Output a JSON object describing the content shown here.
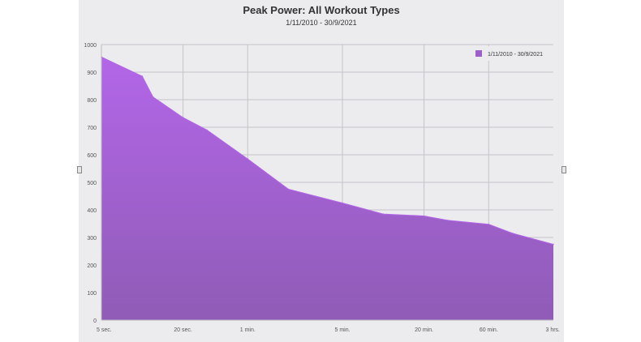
{
  "chart_data": {
    "type": "area",
    "title": "Peak Power: All Workout Types",
    "subtitle": "1/11/2010 - 30/9/2021",
    "legend": {
      "entries": [
        "1/11/2010 - 30/9/2021"
      ],
      "placement": "top-right"
    },
    "xlabel": "",
    "ylabel": "",
    "x_tick_labels": [
      "5 sec.",
      "20 sec.",
      "1 min.",
      "5 min.",
      "20 min.",
      "60 min.",
      "3 hrs."
    ],
    "x_tick_seconds": [
      5,
      20,
      60,
      300,
      1200,
      3600,
      10800
    ],
    "x_scale": "log",
    "y_ticks": [
      0,
      100,
      200,
      300,
      400,
      500,
      600,
      700,
      800,
      900,
      1000
    ],
    "ylim": [
      0,
      1000
    ],
    "grid": true,
    "colors": {
      "area_top": "#b366e8",
      "area_bottom": "#8f5cb6",
      "legend_swatch": "#9c5fc8"
    },
    "series": [
      {
        "name": "1/11/2010 - 30/9/2021",
        "points": [
          {
            "x": 5,
            "y": 955
          },
          {
            "x": 10,
            "y": 885
          },
          {
            "x": 12,
            "y": 810
          },
          {
            "x": 20,
            "y": 735
          },
          {
            "x": 30,
            "y": 690
          },
          {
            "x": 60,
            "y": 585
          },
          {
            "x": 120,
            "y": 475
          },
          {
            "x": 300,
            "y": 425
          },
          {
            "x": 600,
            "y": 385
          },
          {
            "x": 1200,
            "y": 378
          },
          {
            "x": 1800,
            "y": 362
          },
          {
            "x": 3600,
            "y": 348
          },
          {
            "x": 5400,
            "y": 315
          },
          {
            "x": 10800,
            "y": 275
          }
        ]
      }
    ]
  }
}
